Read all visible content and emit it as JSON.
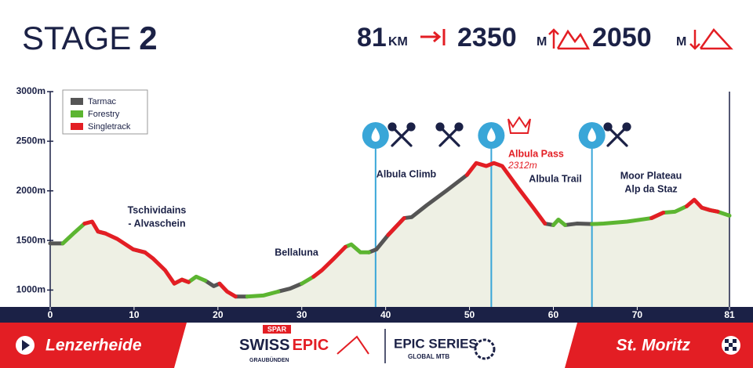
{
  "header": {
    "title": "STAGE",
    "stage_number": "2",
    "stats": [
      {
        "value": "81",
        "unit": "KM"
      },
      {
        "value": "2350",
        "unit": "M"
      },
      {
        "value": "2050",
        "unit": "M"
      }
    ]
  },
  "footer": {
    "start": "Lenzerheide",
    "finish": "St. Moritz",
    "logo_sponsor": "SPAR",
    "logo_event": [
      "SWISS",
      "EPIC"
    ],
    "logo_region": "GRAUBÜNDEN",
    "logo_series": "EPIC SERIES",
    "logo_series_sub": "GLOBAL MTB"
  },
  "chart_data": {
    "type": "line",
    "x": [
      0,
      1.5,
      2.9,
      4.1,
      5.0,
      5.7,
      6.6,
      8.0,
      9.9,
      11.3,
      12.3,
      13.7,
      14.8,
      15.7,
      16.5,
      17.4,
      18.5,
      19.5,
      20.2,
      21.1,
      22.1,
      23.5,
      25.4,
      27.2,
      28.6,
      30.0,
      31.4,
      32.4,
      33.8,
      35.2,
      35.9,
      37.0,
      38.0,
      38.9,
      40.3,
      42.2,
      43.1,
      44.9,
      47.3,
      49.7,
      50.8,
      52.0,
      52.9,
      53.9,
      55.8,
      57.6,
      59.0,
      60.0,
      60.6,
      61.4,
      62.8,
      64.6,
      66.0,
      68.8,
      71.7,
      73.1,
      74.5,
      75.9,
      76.8,
      77.7,
      78.7,
      79.6,
      81.0
    ],
    "series": [
      {
        "name": "Tarmac",
        "color": "#555555",
        "values": [
          1470,
          1470,
          null,
          null,
          null,
          1590,
          1570,
          null,
          1410,
          1380,
          null,
          null,
          null,
          null,
          null,
          null,
          1095,
          1040,
          1065,
          null,
          935,
          935,
          null,
          985,
          1015,
          1065,
          null,
          null,
          null,
          null,
          null,
          null,
          1380,
          1410,
          1555,
          1725,
          1735,
          1855,
          2005,
          2160,
          null,
          null,
          null,
          null,
          null,
          null,
          1670,
          1655,
          null,
          1655,
          1670,
          1665,
          null,
          null,
          null,
          null,
          null,
          null,
          null,
          null,
          null,
          null,
          null
        ]
      },
      {
        "name": "Forestry",
        "color": "#5cb531",
        "values": [
          null,
          1470,
          1580,
          1670,
          null,
          null,
          null,
          null,
          null,
          null,
          null,
          null,
          1065,
          1105,
          1080,
          1135,
          1095,
          null,
          null,
          null,
          null,
          935,
          945,
          985,
          null,
          1065,
          1135,
          null,
          null,
          1435,
          1460,
          1380,
          1380,
          null,
          null,
          null,
          null,
          null,
          null,
          null,
          null,
          null,
          null,
          null,
          null,
          null,
          null,
          1655,
          1710,
          1655,
          null,
          1665,
          1670,
          1690,
          1725,
          1780,
          1790,
          1845,
          null,
          1830,
          1805,
          1790,
          1750
        ]
      },
      {
        "name": "Singletrack",
        "color": "#e31e24",
        "values": [
          null,
          null,
          null,
          1670,
          1690,
          1590,
          1570,
          1515,
          1410,
          1380,
          1315,
          1200,
          1065,
          1105,
          1080,
          null,
          null,
          null,
          1065,
          985,
          935,
          null,
          null,
          null,
          null,
          null,
          1135,
          1200,
          1315,
          1435,
          null,
          null,
          null,
          null,
          1555,
          1725,
          null,
          null,
          null,
          2160,
          2280,
          2250,
          2280,
          2250,
          2030,
          1830,
          1670,
          null,
          null,
          null,
          null,
          null,
          null,
          null,
          1725,
          1780,
          null,
          1845,
          1910,
          1830,
          1805,
          1790,
          null
        ]
      }
    ],
    "xlim": [
      0,
      81
    ],
    "xticks": [
      0,
      10,
      20,
      30,
      40,
      50,
      60,
      70,
      81
    ],
    "ylim": [
      830,
      3000
    ],
    "yticks": [
      {
        "value": 1000,
        "label": "1000m"
      },
      {
        "value": 1500,
        "label": "1500m"
      },
      {
        "value": 2000,
        "label": "2000m"
      },
      {
        "value": 2500,
        "label": "2500m"
      },
      {
        "value": 3000,
        "label": "3000m"
      }
    ],
    "legend": "top-left",
    "area_color": "#eef0e4",
    "aid_stations_km": [
      38.8,
      52.6,
      64.6
    ],
    "annotations": [
      {
        "lines": [
          "Tschividains",
          "- Alvaschein"
        ]
      },
      {
        "lines": [
          "Bellaluna"
        ]
      },
      {
        "lines": [
          "Albula Climb"
        ]
      },
      {
        "lines": [
          "Albula Trail"
        ]
      },
      {
        "lines": [
          "Moor Plateau",
          "Alp da Staz"
        ]
      }
    ],
    "summit": {
      "name": "Albula Pass",
      "elevation_label": "2312m"
    }
  }
}
